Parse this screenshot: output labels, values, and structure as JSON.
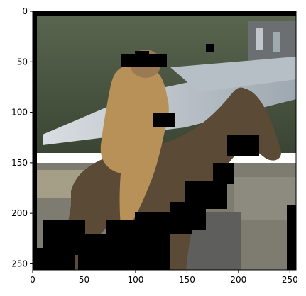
{
  "figure": {
    "image_description_colors": {
      "sky": "#c9d3da",
      "trees": "#3e4a34",
      "roof": "#aab4bc",
      "horse": "#5a4a36",
      "rider_coat": "#b8905a",
      "mask": "#000000",
      "ground": "#6e6a5c"
    },
    "x_axis": {
      "range": [
        0,
        256
      ],
      "ticks": [
        {
          "value": 0,
          "label": "0"
        },
        {
          "value": 50,
          "label": "50"
        },
        {
          "value": 100,
          "label": "100"
        },
        {
          "value": 150,
          "label": "150"
        },
        {
          "value": 200,
          "label": "200"
        },
        {
          "value": 250,
          "label": "250"
        }
      ]
    },
    "y_axis": {
      "range": [
        0,
        256
      ],
      "inverted": true,
      "ticks": [
        {
          "value": 0,
          "label": "0"
        },
        {
          "value": 50,
          "label": "50"
        },
        {
          "value": 100,
          "label": "100"
        },
        {
          "value": 150,
          "label": "150"
        },
        {
          "value": 200,
          "label": "200"
        },
        {
          "value": 250,
          "label": "250"
        }
      ]
    }
  }
}
